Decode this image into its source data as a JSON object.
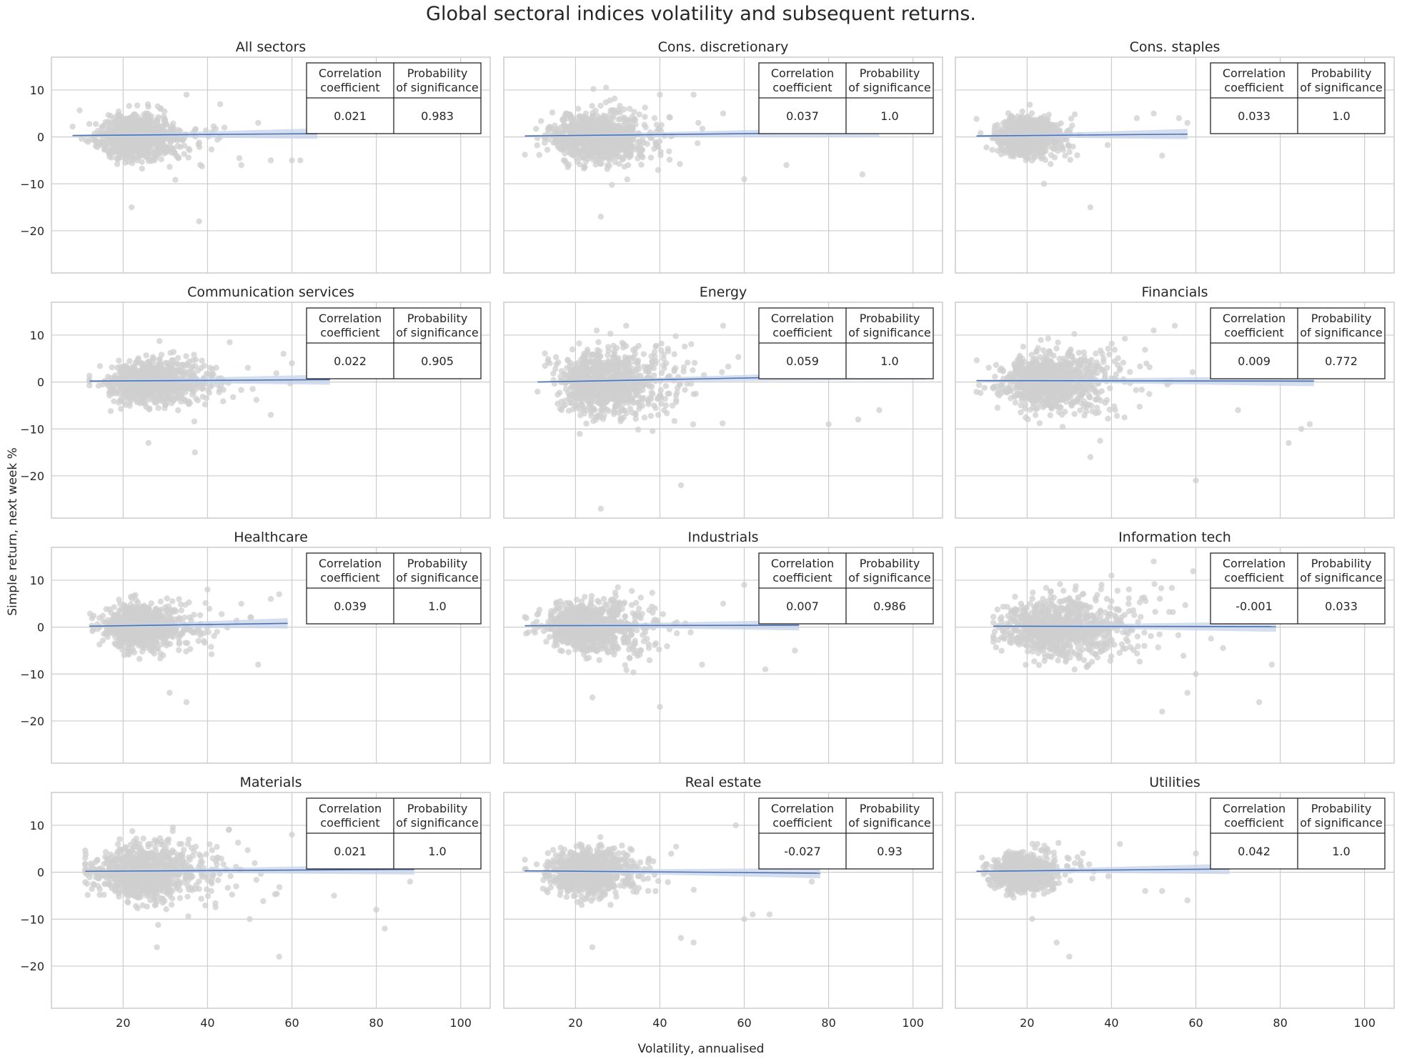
{
  "figure": {
    "title": "Global sectoral indices volatility and subsequent returns.",
    "xlabel": "Volatility, annualised",
    "ylabel": "Simple return, next week %"
  },
  "table_headers": {
    "col1": [
      "Correlation",
      "coefficient"
    ],
    "col2": [
      "Probability",
      "of significance"
    ]
  },
  "colors": {
    "scatter": "#cfcfcf",
    "regression_line": "#4c72b0",
    "confidence_band": "#c6d3e8",
    "grid": "#cccccc",
    "axes_edge": "#cccccc",
    "table_border": "#262626"
  },
  "chart_data": [
    {
      "type": "scatter",
      "title": "All sectors",
      "xlim": [
        3,
        107
      ],
      "ylim": [
        -29,
        17
      ],
      "xticks": [
        20,
        40,
        60,
        80,
        100
      ],
      "yticks": [
        10,
        0,
        -10,
        -20
      ],
      "grid": true,
      "x_range": [
        8,
        66
      ],
      "regression": {
        "y_start": 0.3,
        "y_end": 0.7
      },
      "center": 21,
      "spread_x": 6,
      "spread_y": 2.2,
      "outliers": [
        [
          22,
          -15
        ],
        [
          38,
          -18
        ],
        [
          48,
          -6
        ],
        [
          55,
          -5
        ],
        [
          60,
          -5
        ],
        [
          62,
          -5
        ],
        [
          44,
          2
        ],
        [
          52,
          3
        ],
        [
          35,
          9
        ]
      ],
      "correlation": "0.021",
      "significance": "0.983"
    },
    {
      "type": "scatter",
      "title": "Cons. discretionary",
      "xlim": [
        3,
        107
      ],
      "ylim": [
        -29,
        17
      ],
      "xticks": [
        20,
        40,
        60,
        80,
        100
      ],
      "yticks": [
        10,
        0,
        -10,
        -20
      ],
      "grid": true,
      "x_range": [
        8,
        92
      ],
      "regression": {
        "y_start": 0.2,
        "y_end": 1.0
      },
      "center": 22,
      "spread_x": 7,
      "spread_y": 2.6,
      "outliers": [
        [
          26,
          -17
        ],
        [
          60,
          -9
        ],
        [
          88,
          -8
        ],
        [
          70,
          -6
        ],
        [
          48,
          9
        ],
        [
          40,
          9
        ],
        [
          55,
          5
        ],
        [
          76,
          4
        ]
      ],
      "correlation": "0.037",
      "significance": "1.0"
    },
    {
      "type": "scatter",
      "title": "Cons. staples",
      "xlim": [
        3,
        107
      ],
      "ylim": [
        -29,
        17
      ],
      "xticks": [
        20,
        40,
        60,
        80,
        100
      ],
      "yticks": [
        10,
        0,
        -10,
        -20
      ],
      "grid": true,
      "x_range": [
        8,
        58
      ],
      "regression": {
        "y_start": 0.2,
        "y_end": 0.6
      },
      "center": 18,
      "spread_x": 4.5,
      "spread_y": 1.9,
      "outliers": [
        [
          35,
          -15
        ],
        [
          24,
          -10
        ],
        [
          46,
          4
        ],
        [
          50,
          5
        ],
        [
          56,
          4
        ],
        [
          52,
          -4
        ],
        [
          58,
          3
        ]
      ],
      "correlation": "0.033",
      "significance": "1.0"
    },
    {
      "type": "scatter",
      "title": "Communication services",
      "xlim": [
        3,
        107
      ],
      "ylim": [
        -29,
        17
      ],
      "xticks": [
        20,
        40,
        60,
        80,
        100
      ],
      "yticks": [
        10,
        0,
        -10,
        -20
      ],
      "grid": true,
      "x_range": [
        12,
        69
      ],
      "regression": {
        "y_start": 0.2,
        "y_end": 0.5
      },
      "center": 24,
      "spread_x": 7,
      "spread_y": 2.2,
      "outliers": [
        [
          37,
          -15
        ],
        [
          26,
          -13
        ],
        [
          55,
          -7
        ],
        [
          60,
          4
        ],
        [
          64,
          2
        ],
        [
          68,
          1
        ],
        [
          58,
          6
        ]
      ],
      "correlation": "0.022",
      "significance": "0.905"
    },
    {
      "type": "scatter",
      "title": "Energy",
      "xlim": [
        3,
        107
      ],
      "ylim": [
        -29,
        17
      ],
      "xticks": [
        20,
        40,
        60,
        80,
        100
      ],
      "yticks": [
        10,
        0,
        -10,
        -20
      ],
      "grid": true,
      "x_range": [
        11,
        103
      ],
      "regression": {
        "y_start": 0.0,
        "y_end": 1.6
      },
      "center": 24,
      "spread_x": 8,
      "spread_y": 3.2,
      "outliers": [
        [
          45,
          -22
        ],
        [
          26,
          -27
        ],
        [
          80,
          -9
        ],
        [
          87,
          -8
        ],
        [
          92,
          -6
        ],
        [
          55,
          12
        ],
        [
          32,
          12
        ],
        [
          68,
          6
        ],
        [
          98,
          4
        ]
      ],
      "correlation": "0.059",
      "significance": "1.0"
    },
    {
      "type": "scatter",
      "title": "Financials",
      "xlim": [
        3,
        107
      ],
      "ylim": [
        -29,
        17
      ],
      "xticks": [
        20,
        40,
        60,
        80,
        100
      ],
      "yticks": [
        10,
        0,
        -10,
        -20
      ],
      "grid": true,
      "x_range": [
        8,
        88
      ],
      "regression": {
        "y_start": 0.3,
        "y_end": 0.2
      },
      "center": 22,
      "spread_x": 8,
      "spread_y": 2.8,
      "outliers": [
        [
          60,
          -21
        ],
        [
          35,
          -16
        ],
        [
          82,
          -13
        ],
        [
          87,
          -9
        ],
        [
          85,
          -10
        ],
        [
          50,
          11
        ],
        [
          55,
          12
        ],
        [
          75,
          8
        ],
        [
          70,
          -6
        ]
      ],
      "correlation": "0.009",
      "significance": "0.772"
    },
    {
      "type": "scatter",
      "title": "Healthcare",
      "xlim": [
        3,
        107
      ],
      "ylim": [
        -29,
        17
      ],
      "xticks": [
        20,
        40,
        60,
        80,
        100
      ],
      "yticks": [
        10,
        0,
        -10,
        -20
      ],
      "grid": true,
      "x_range": [
        12,
        59
      ],
      "regression": {
        "y_start": 0.2,
        "y_end": 0.8
      },
      "center": 22,
      "spread_x": 6,
      "spread_y": 2.2,
      "outliers": [
        [
          31,
          -14
        ],
        [
          35,
          -16
        ],
        [
          52,
          -8
        ],
        [
          40,
          8
        ],
        [
          55,
          6
        ],
        [
          57,
          7
        ],
        [
          48,
          5
        ]
      ],
      "correlation": "0.039",
      "significance": "1.0"
    },
    {
      "type": "scatter",
      "title": "Industrials",
      "xlim": [
        3,
        107
      ],
      "ylim": [
        -29,
        17
      ],
      "xticks": [
        20,
        40,
        60,
        80,
        100
      ],
      "yticks": [
        10,
        0,
        -10,
        -20
      ],
      "grid": true,
      "x_range": [
        8,
        73
      ],
      "regression": {
        "y_start": 0.3,
        "y_end": 0.4
      },
      "center": 20,
      "spread_x": 7,
      "spread_y": 2.4,
      "outliers": [
        [
          40,
          -17
        ],
        [
          24,
          -15
        ],
        [
          65,
          -9
        ],
        [
          50,
          -8
        ],
        [
          60,
          9
        ],
        [
          70,
          7
        ],
        [
          55,
          5
        ],
        [
          72,
          -5
        ]
      ],
      "correlation": "0.007",
      "significance": "0.986"
    },
    {
      "type": "scatter",
      "title": "Information tech",
      "xlim": [
        3,
        107
      ],
      "ylim": [
        -29,
        17
      ],
      "xticks": [
        20,
        40,
        60,
        80,
        100
      ],
      "yticks": [
        10,
        0,
        -10,
        -20
      ],
      "grid": true,
      "x_range": [
        12,
        79
      ],
      "regression": {
        "y_start": 0.2,
        "y_end": 0.1
      },
      "center": 24,
      "spread_x": 9,
      "spread_y": 3.0,
      "outliers": [
        [
          52,
          -18
        ],
        [
          75,
          -16
        ],
        [
          58,
          -14
        ],
        [
          78,
          -8
        ],
        [
          50,
          14
        ],
        [
          40,
          11
        ],
        [
          65,
          9
        ],
        [
          72,
          7
        ],
        [
          60,
          -10
        ]
      ],
      "correlation": "-0.001",
      "significance": "0.033"
    },
    {
      "type": "scatter",
      "title": "Materials",
      "xlim": [
        3,
        107
      ],
      "ylim": [
        -29,
        17
      ],
      "xticks": [
        20,
        40,
        60,
        80,
        100
      ],
      "yticks": [
        10,
        0,
        -10,
        -20
      ],
      "grid": true,
      "x_range": [
        11,
        89
      ],
      "regression": {
        "y_start": 0.2,
        "y_end": 0.6
      },
      "center": 22,
      "spread_x": 8,
      "spread_y": 2.8,
      "outliers": [
        [
          57,
          -18
        ],
        [
          28,
          -16
        ],
        [
          82,
          -12
        ],
        [
          80,
          -8
        ],
        [
          88,
          -2
        ],
        [
          70,
          -5
        ],
        [
          45,
          9
        ],
        [
          60,
          8
        ],
        [
          50,
          -10
        ]
      ],
      "correlation": "0.021",
      "significance": "1.0"
    },
    {
      "type": "scatter",
      "title": "Real estate",
      "xlim": [
        3,
        107
      ],
      "ylim": [
        -29,
        17
      ],
      "xticks": [
        20,
        40,
        60,
        80,
        100
      ],
      "yticks": [
        10,
        0,
        -10,
        -20
      ],
      "grid": true,
      "x_range": [
        8,
        78
      ],
      "regression": {
        "y_start": 0.3,
        "y_end": -0.2
      },
      "center": 20,
      "spread_x": 6,
      "spread_y": 2.3,
      "outliers": [
        [
          24,
          -16
        ],
        [
          45,
          -14
        ],
        [
          48,
          -15
        ],
        [
          60,
          -10
        ],
        [
          62,
          -9
        ],
        [
          66,
          -9
        ],
        [
          58,
          10
        ],
        [
          70,
          5
        ],
        [
          76,
          -2
        ]
      ],
      "correlation": "-0.027",
      "significance": "0.93"
    },
    {
      "type": "scatter",
      "title": "Utilities",
      "xlim": [
        3,
        107
      ],
      "ylim": [
        -29,
        17
      ],
      "xticks": [
        20,
        40,
        60,
        80,
        100
      ],
      "yticks": [
        10,
        0,
        -10,
        -20
      ],
      "grid": true,
      "x_range": [
        8,
        68
      ],
      "regression": {
        "y_start": 0.2,
        "y_end": 0.7
      },
      "center": 17,
      "spread_x": 4.5,
      "spread_y": 1.9,
      "outliers": [
        [
          27,
          -15
        ],
        [
          30,
          -18
        ],
        [
          48,
          -4
        ],
        [
          52,
          -4
        ],
        [
          58,
          -6
        ],
        [
          42,
          6
        ],
        [
          60,
          4
        ],
        [
          66,
          2
        ]
      ],
      "correlation": "0.042",
      "significance": "1.0"
    }
  ]
}
